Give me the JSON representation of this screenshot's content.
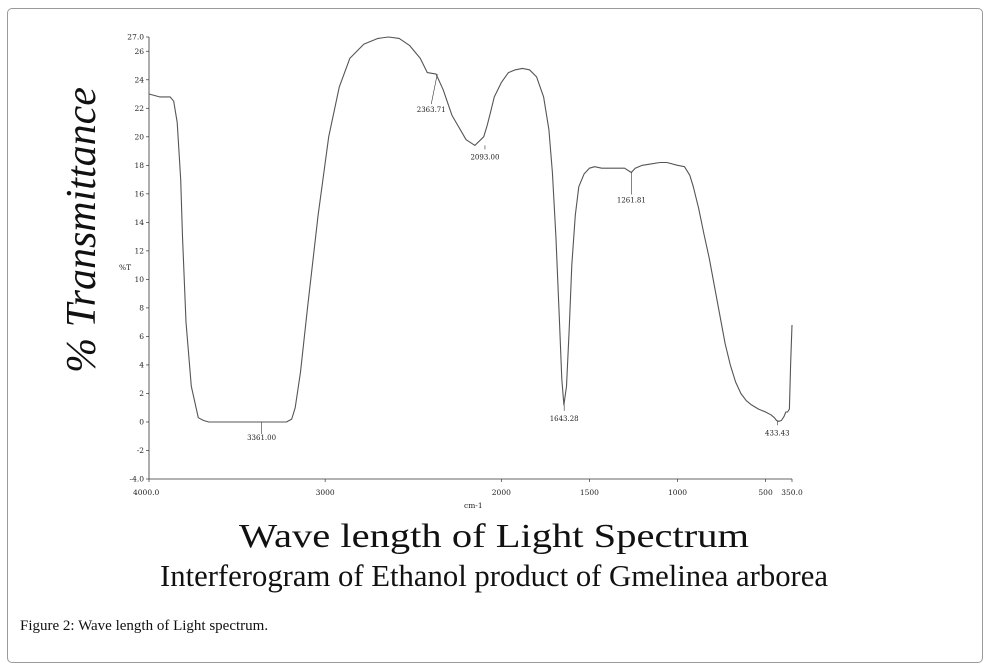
{
  "caption": {
    "label": "Figure 2:",
    "text": " Wave length of Light spectrum."
  },
  "chart_data": {
    "type": "line",
    "title": "Interferogram of Ethanol product of Gmelinea arborea",
    "xlabel": "Wave length of Light Spectrum",
    "xunit": "cm-1",
    "ylabel": "% Transmittance",
    "yunit": "%T",
    "xlim": [
      4000.0,
      350.0
    ],
    "ylim": [
      -4.0,
      27.0
    ],
    "x_ticks": [
      {
        "value": 4000,
        "label": "4000.0"
      },
      {
        "value": 3000,
        "label": "3000"
      },
      {
        "value": 2000,
        "label": "2000"
      },
      {
        "value": 1500,
        "label": "1500"
      },
      {
        "value": 1000,
        "label": "1000"
      },
      {
        "value": 500,
        "label": "500"
      },
      {
        "value": 350,
        "label": "350.0"
      }
    ],
    "y_ticks": [
      {
        "value": 27,
        "label": "27.0"
      },
      {
        "value": 26,
        "label": "26"
      },
      {
        "value": 24,
        "label": "24"
      },
      {
        "value": 22,
        "label": "22"
      },
      {
        "value": 20,
        "label": "20"
      },
      {
        "value": 18,
        "label": "18"
      },
      {
        "value": 16,
        "label": "16"
      },
      {
        "value": 14,
        "label": "14"
      },
      {
        "value": 12,
        "label": "12"
      },
      {
        "value": 10,
        "label": "10"
      },
      {
        "value": 8,
        "label": "8"
      },
      {
        "value": 6,
        "label": "6"
      },
      {
        "value": 4,
        "label": "4"
      },
      {
        "value": 2,
        "label": "2"
      },
      {
        "value": 0,
        "label": "0"
      },
      {
        "value": -2,
        "label": "-2"
      },
      {
        "value": -4,
        "label": "-4.0"
      }
    ],
    "grid": false,
    "series": [
      {
        "color": "#555555",
        "x": [
          4000,
          3940,
          3900,
          3880,
          3860,
          3840,
          3820,
          3810,
          3790,
          3760,
          3720,
          3690,
          3660,
          3620,
          3540,
          3400,
          3320,
          3300,
          3220,
          3190,
          3170,
          3140,
          3100,
          3040,
          2980,
          2920,
          2860,
          2780,
          2700,
          2640,
          2580,
          2520,
          2460,
          2420,
          2370,
          2330,
          2280,
          2200,
          2150,
          2100,
          2080,
          2060,
          2040,
          2000,
          1960,
          1920,
          1880,
          1840,
          1800,
          1760,
          1730,
          1710,
          1690,
          1670,
          1657,
          1645,
          1630,
          1615,
          1600,
          1580,
          1560,
          1530,
          1500,
          1470,
          1430,
          1400,
          1350,
          1300,
          1262,
          1240,
          1200,
          1150,
          1100,
          1060,
          1000,
          960,
          930,
          910,
          880,
          850,
          820,
          790,
          760,
          730,
          700,
          670,
          640,
          610,
          580,
          540,
          500,
          470,
          450,
          438,
          425,
          410,
          395,
          385,
          375,
          365,
          358,
          350
        ],
        "y": [
          23.0,
          22.8,
          22.8,
          22.8,
          22.5,
          21.0,
          17.0,
          13.0,
          7.0,
          2.5,
          0.3,
          0.1,
          0.0,
          0.0,
          0.0,
          0.0,
          0.0,
          0.0,
          0.0,
          0.2,
          1.0,
          3.5,
          8.0,
          14.5,
          20.0,
          23.5,
          25.5,
          26.5,
          26.9,
          27.0,
          26.9,
          26.4,
          25.5,
          24.5,
          24.4,
          23.3,
          21.5,
          19.8,
          19.4,
          20.0,
          20.8,
          21.8,
          22.8,
          23.8,
          24.5,
          24.7,
          24.8,
          24.7,
          24.2,
          22.8,
          20.5,
          17.5,
          13.0,
          7.0,
          3.0,
          1.2,
          2.5,
          6.5,
          11.0,
          14.5,
          16.5,
          17.4,
          17.8,
          17.9,
          17.8,
          17.8,
          17.8,
          17.8,
          17.5,
          17.8,
          18.0,
          18.1,
          18.2,
          18.2,
          18.0,
          17.9,
          17.3,
          16.5,
          15.0,
          13.2,
          11.5,
          9.5,
          7.5,
          5.5,
          4.0,
          2.8,
          2.0,
          1.5,
          1.2,
          0.9,
          0.7,
          0.5,
          0.3,
          0.1,
          0.05,
          0.1,
          0.4,
          0.7,
          0.7,
          0.9,
          4.0,
          6.8
        ]
      }
    ],
    "annotations": [
      {
        "label": "3361.00",
        "x": 3361.0,
        "y": 0.0
      },
      {
        "label": "2363.71",
        "x": 2363.71,
        "y": 24.4
      },
      {
        "label": "2093.00",
        "x": 2093.0,
        "y": 19.4
      },
      {
        "label": "1643.28",
        "x": 1643.28,
        "y": 1.2
      },
      {
        "label": "1261.81",
        "x": 1261.81,
        "y": 17.5
      },
      {
        "label": "433.43",
        "x": 433.43,
        "y": 0.05
      }
    ]
  }
}
